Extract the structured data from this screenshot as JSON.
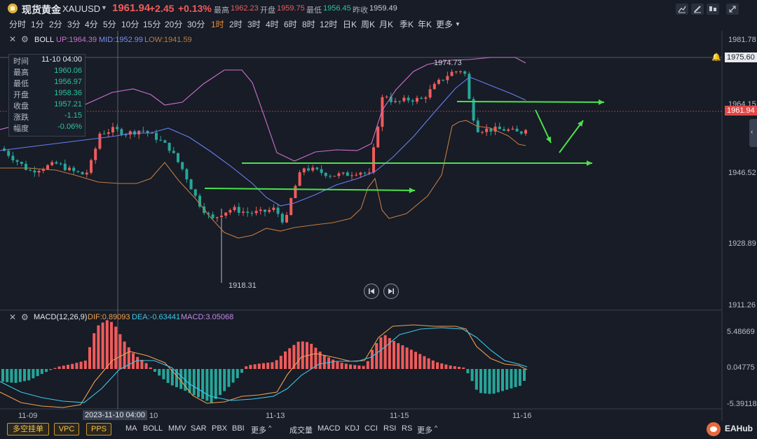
{
  "header": {
    "title": "现货黄金",
    "symbol": "XAUUSD",
    "price": "1961.94",
    "change": "+2.45",
    "change_pct": "+0.13%",
    "high_label": "最高",
    "high": "1962.23",
    "open_label": "开盘",
    "open": "1959.75",
    "low_label": "最低",
    "low": "1956.45",
    "prev_close_label": "昨收",
    "prev_close": "1959.49",
    "tools": [
      "draw-line-icon",
      "pencil-icon",
      "layout-icon",
      "collapse-icon"
    ]
  },
  "periods": {
    "items": [
      "分时",
      "1分",
      "2分",
      "3分",
      "4分",
      "5分",
      "10分",
      "15分",
      "20分",
      "30分",
      "1时",
      "2时",
      "3时",
      "4时",
      "6时",
      "8时",
      "12时",
      "日K",
      "周K",
      "月K",
      "季K",
      "年K",
      "更多"
    ],
    "active": "1时"
  },
  "boll": {
    "name": "BOLL",
    "up_label": "UP:1964.39",
    "mid_label": "MID:1952.99",
    "low_label": "LOW:1941.59"
  },
  "info": {
    "rows": [
      {
        "k": "时间",
        "v": "11-10 04:00"
      },
      {
        "k": "最高",
        "v": "1960.06"
      },
      {
        "k": "最低",
        "v": "1956.97"
      },
      {
        "k": "开盘",
        "v": "1958.36"
      },
      {
        "k": "收盘",
        "v": "1957.21"
      },
      {
        "k": "涨跌",
        "v": "-1.15"
      },
      {
        "k": "幅度",
        "v": "-0.06%"
      }
    ]
  },
  "price_axis": {
    "ticks": [
      "1981.78",
      "1964.15",
      "1946.52",
      "1928.89",
      "1911.26"
    ],
    "crosshair_price": "1975.60",
    "last_price": "1961.94"
  },
  "annotations": {
    "peak": "1974.73",
    "trough": "1918.31"
  },
  "macd": {
    "name": "MACD(12,26,9)",
    "dif_label": "DIF:0.89093",
    "dea_label": "DEA:-0.63441",
    "macd_label": "MACD:3.05068",
    "ticks": [
      "5.48669",
      "0.04775",
      "-5.39118"
    ]
  },
  "date_axis": {
    "labels": [
      "11-09",
      "10",
      "11-13",
      "11-15",
      "11-16"
    ],
    "crosshair_date": "2023-11-10 04:00"
  },
  "bottom_bar": {
    "tags": [
      "多空挂单",
      "VPC",
      "PPS"
    ],
    "main_indicators": [
      "MA",
      "BOLL",
      "MMV",
      "SAR",
      "PBX",
      "BBI",
      "更多"
    ],
    "sub_indicators": [
      "成交量",
      "MACD",
      "KDJ",
      "CCI",
      "RSI",
      "RS",
      "更多"
    ],
    "brand": "EAHub"
  },
  "colors": {
    "up": "#f05b5b",
    "down": "#26a69a",
    "boll_up": "#d070d0",
    "boll_mid": "#6a7ef0",
    "boll_low": "#c07a44",
    "arrow": "#4ce24c",
    "dif": "#f0a050",
    "dea": "#3cc8e8"
  }
}
